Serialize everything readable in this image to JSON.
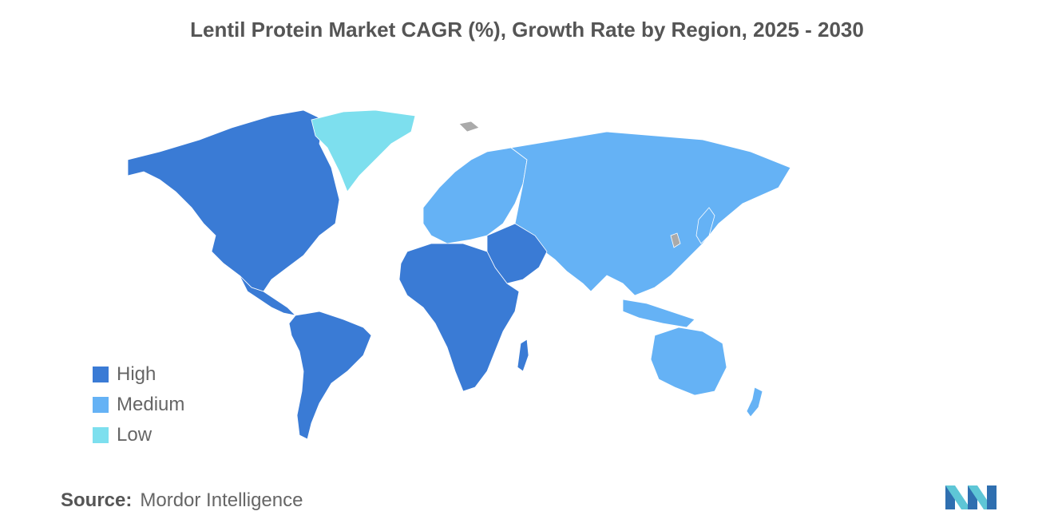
{
  "title": "Lentil Protein Market CAGR (%), Growth Rate by Region, 2025 - 2030",
  "legend": {
    "items": [
      {
        "label": "High",
        "color": "#3a7bd5"
      },
      {
        "label": "Medium",
        "color": "#65b2f5"
      },
      {
        "label": "Low",
        "color": "#7ddfee"
      }
    ]
  },
  "colors": {
    "high": "#3a7bd5",
    "medium": "#65b2f5",
    "low": "#7ddfee",
    "no_data": "#aaaaaa"
  },
  "regions": {
    "north_america": "high",
    "south_america": "high",
    "africa": "high",
    "middle_east": "high",
    "europe": "medium",
    "asia": "medium",
    "oceania": "medium",
    "greenland": "low"
  },
  "source": {
    "label": "Source:",
    "value": "Mordor Intelligence"
  },
  "logo": "mordor-intelligence-logo"
}
